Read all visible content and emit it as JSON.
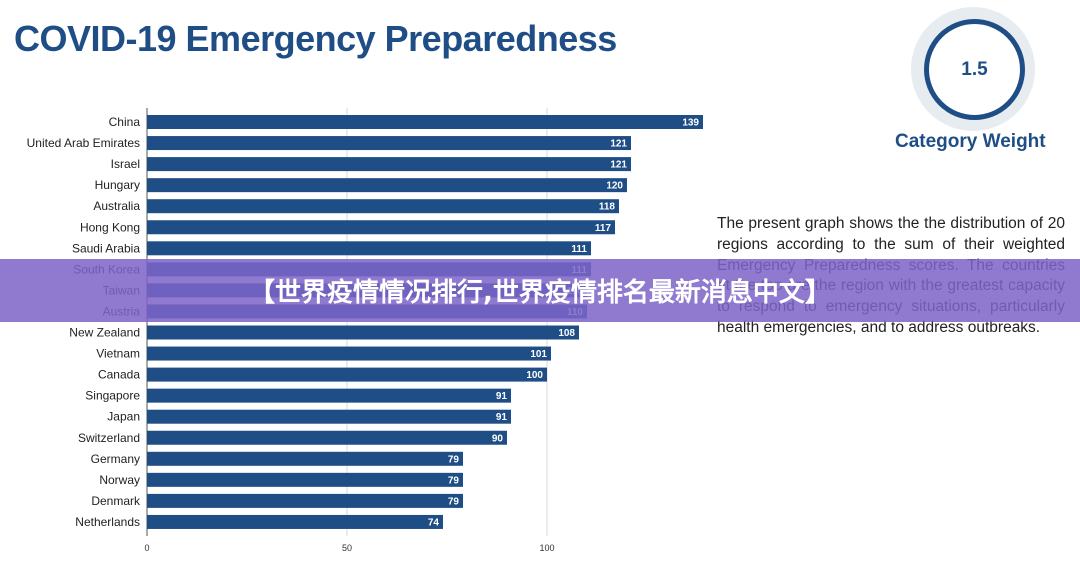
{
  "header": {
    "title": "COVID-19 Emergency Preparedness"
  },
  "weight": {
    "value": "1.5",
    "label": "Category Weight"
  },
  "description": "The present graph shows the the distribution of 20 regions according to the sum of their weighted Emergency Preparedness scores. The countries at the top are the region with the greatest capacity to respond to emergency situations, particularly health emergencies, and to address outbreaks.",
  "banner": {
    "text": "【世界疫情情况排行,世界疫情排名最新消息中文】"
  },
  "colors": {
    "bar": "#1f4e86",
    "accent": "#1f4e86",
    "banner": "#7d64c8"
  },
  "chart_data": {
    "type": "bar",
    "orientation": "horizontal",
    "categories": [
      "China",
      "United Arab Emirates",
      "Israel",
      "Hungary",
      "Australia",
      "Hong Kong",
      "Saudi Arabia",
      "South Korea",
      "Taiwan",
      "Austria",
      "New Zealand",
      "Vietnam",
      "Canada",
      "Singapore",
      "Japan",
      "Switzerland",
      "Germany",
      "Norway",
      "Denmark",
      "Netherlands"
    ],
    "values": [
      139,
      121,
      121,
      120,
      118,
      117,
      111,
      111,
      110,
      110,
      108,
      101,
      100,
      91,
      91,
      90,
      79,
      79,
      79,
      74
    ],
    "xticks": [
      0,
      50,
      100
    ],
    "xlim": [
      0,
      150
    ],
    "grid": true,
    "title": "COVID-19 Emergency Preparedness"
  }
}
